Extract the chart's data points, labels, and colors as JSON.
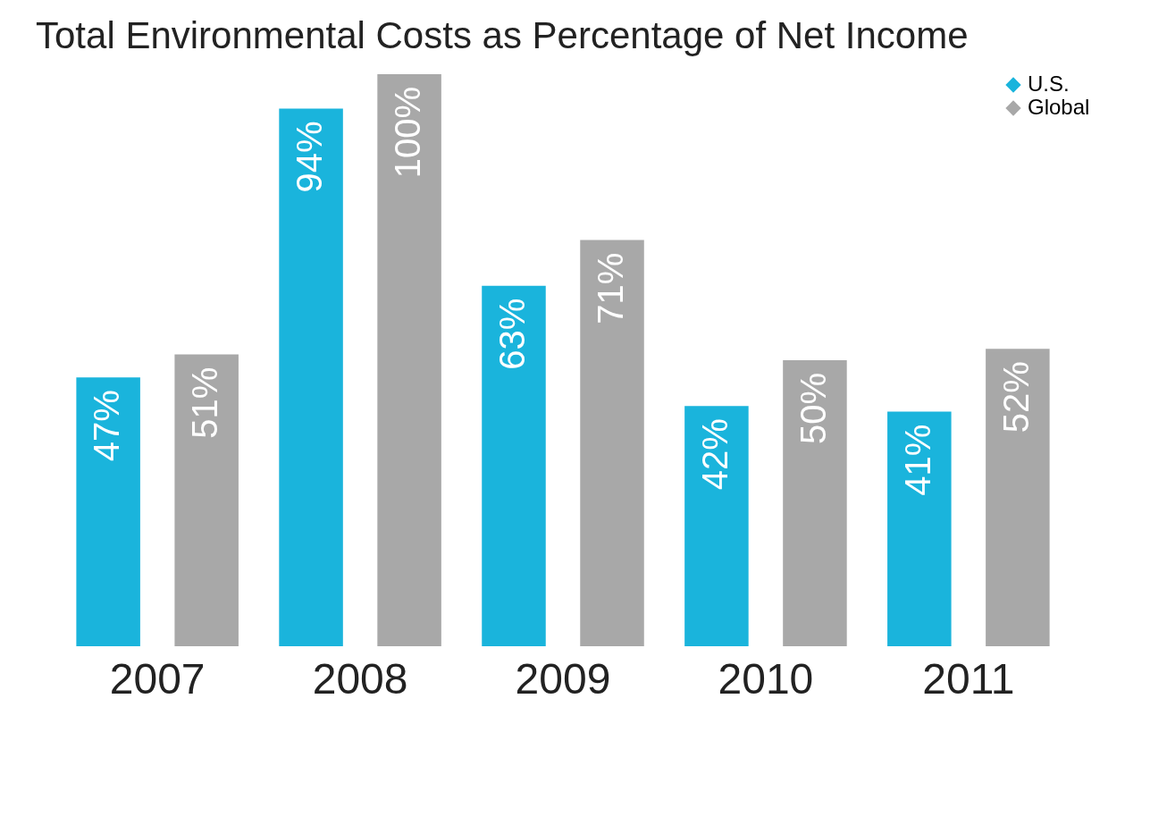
{
  "chart_data": {
    "type": "bar",
    "title": "Total Environmental Costs as Percentage of Net Income",
    "categories": [
      "2007",
      "2008",
      "2009",
      "2010",
      "2011"
    ],
    "series": [
      {
        "name": "U.S.",
        "color": "#1ab4dc",
        "values": [
          47,
          94,
          63,
          42,
          41
        ],
        "value_labels": [
          "47%",
          "94%",
          "63%",
          "42%",
          "41%"
        ]
      },
      {
        "name": "Global",
        "color": "#a8a8a8",
        "values": [
          51,
          100,
          71,
          50,
          52
        ],
        "value_labels": [
          "51%",
          "100%",
          "71%",
          "50%",
          "52%"
        ]
      }
    ],
    "legend": "top right"
  }
}
